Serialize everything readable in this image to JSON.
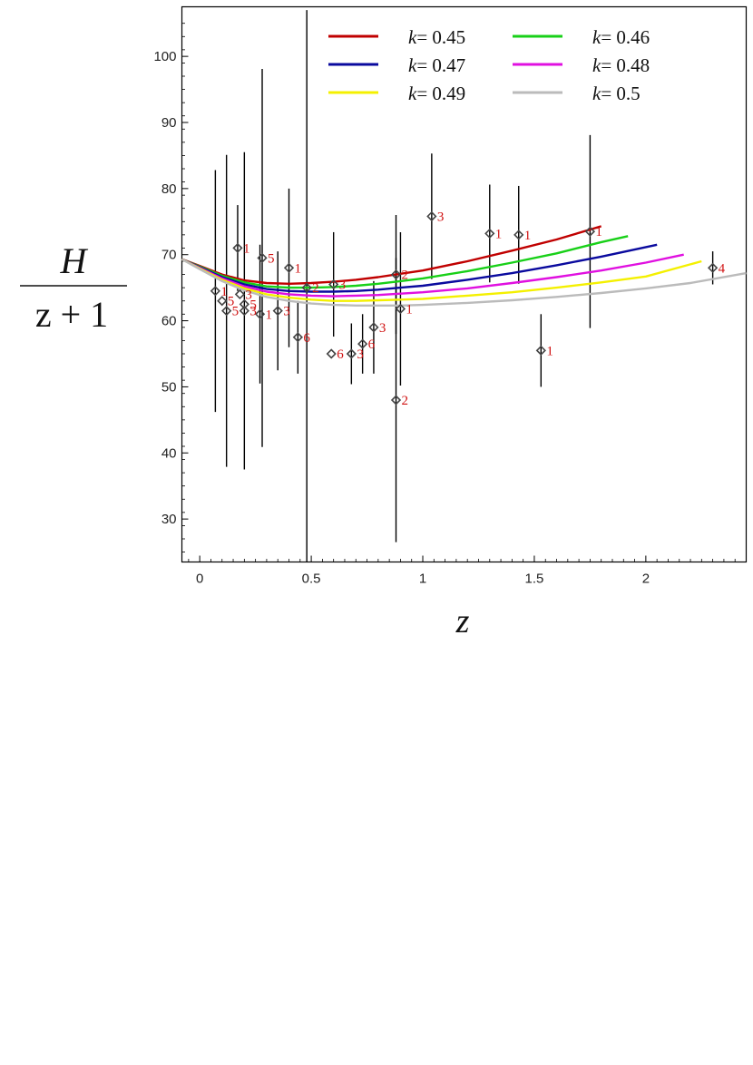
{
  "chart_data": {
    "type": "scatter",
    "xlabel": "z",
    "ylabel_numerator": "H",
    "ylabel_denominator": "z + 1",
    "xlim": [
      -0.08,
      2.45
    ],
    "ylim": [
      23.5,
      107.5
    ],
    "xticks": [
      "0",
      "0.5",
      "1",
      "1.5",
      "2"
    ],
    "xtick_values": [
      0,
      0.5,
      1,
      1.5,
      2
    ],
    "yticks": [
      "30",
      "40",
      "50",
      "60",
      "70",
      "80",
      "90",
      "100"
    ],
    "ytick_values": [
      30,
      40,
      50,
      60,
      70,
      80,
      90,
      100
    ],
    "legend": [
      {
        "var": "k",
        "value": "= 0.45",
        "color": "#c00000"
      },
      {
        "var": "k",
        "value": "= 0.46",
        "color": "#18d018"
      },
      {
        "var": "k",
        "value": "= 0.47",
        "color": "#0a0a9e"
      },
      {
        "var": "k",
        "value": "= 0.48",
        "color": "#e010e0"
      },
      {
        "var": "k",
        "value": "= 0.49",
        "color": "#f4f000"
      },
      {
        "var": "k",
        "value": "= 0.5",
        "color": "#bbbbbb"
      }
    ],
    "curves": [
      {
        "k": 0.45,
        "color": "#c00000",
        "x": [
          -0.08,
          0.0,
          0.1,
          0.2,
          0.3,
          0.4,
          0.5,
          0.6,
          0.7,
          0.8,
          0.9,
          1.0,
          1.2,
          1.4,
          1.6,
          1.8
        ],
        "y": [
          69.3,
          68.3,
          67.0,
          66.1,
          65.7,
          65.6,
          65.7,
          65.9,
          66.2,
          66.6,
          67.1,
          67.6,
          69.0,
          70.6,
          72.3,
          74.3
        ]
      },
      {
        "k": 0.46,
        "color": "#18d018",
        "x": [
          -0.08,
          0.0,
          0.1,
          0.2,
          0.3,
          0.4,
          0.5,
          0.6,
          0.7,
          0.8,
          0.9,
          1.0,
          1.2,
          1.4,
          1.6,
          1.8,
          1.92
        ],
        "y": [
          69.3,
          68.2,
          66.8,
          65.8,
          65.2,
          65.0,
          65.0,
          65.1,
          65.3,
          65.6,
          66.0,
          66.4,
          67.5,
          68.8,
          70.2,
          71.9,
          72.8
        ]
      },
      {
        "k": 0.47,
        "color": "#0a0a9e",
        "x": [
          -0.08,
          0.0,
          0.1,
          0.2,
          0.3,
          0.4,
          0.5,
          0.6,
          0.7,
          0.8,
          0.9,
          1.0,
          1.2,
          1.4,
          1.6,
          1.8,
          2.05
        ],
        "y": [
          69.3,
          68.1,
          66.6,
          65.5,
          64.8,
          64.5,
          64.4,
          64.4,
          64.5,
          64.7,
          65.0,
          65.3,
          66.2,
          67.2,
          68.4,
          69.7,
          71.5
        ]
      },
      {
        "k": 0.48,
        "color": "#e010e0",
        "x": [
          -0.08,
          0.0,
          0.1,
          0.2,
          0.3,
          0.4,
          0.5,
          0.6,
          0.7,
          0.8,
          0.9,
          1.0,
          1.2,
          1.4,
          1.6,
          1.8,
          2.0,
          2.17
        ],
        "y": [
          69.3,
          68.0,
          66.4,
          65.2,
          64.4,
          64.0,
          63.8,
          63.7,
          63.8,
          63.9,
          64.1,
          64.3,
          64.9,
          65.7,
          66.6,
          67.6,
          68.8,
          70.0
        ]
      },
      {
        "k": 0.49,
        "color": "#f4f000",
        "x": [
          -0.08,
          0.0,
          0.1,
          0.2,
          0.3,
          0.4,
          0.5,
          0.6,
          0.7,
          0.8,
          0.9,
          1.0,
          1.2,
          1.4,
          1.6,
          1.8,
          2.0,
          2.25
        ],
        "y": [
          69.3,
          67.9,
          66.2,
          64.9,
          64.0,
          63.5,
          63.2,
          63.0,
          63.0,
          63.1,
          63.2,
          63.3,
          63.8,
          64.3,
          65.0,
          65.8,
          66.7,
          69.0
        ]
      },
      {
        "k": 0.5,
        "color": "#bbbbbb",
        "x": [
          -0.08,
          0.0,
          0.1,
          0.2,
          0.3,
          0.4,
          0.5,
          0.6,
          0.7,
          0.8,
          0.9,
          1.0,
          1.2,
          1.4,
          1.6,
          1.8,
          2.0,
          2.2,
          2.45
        ],
        "y": [
          69.3,
          67.8,
          66.0,
          64.6,
          63.6,
          63.0,
          62.6,
          62.4,
          62.3,
          62.3,
          62.3,
          62.4,
          62.7,
          63.1,
          63.6,
          64.2,
          64.9,
          65.7,
          67.2
        ]
      }
    ],
    "points": [
      {
        "x": 0.07,
        "y": 64.5,
        "err": 18.3,
        "label": "1"
      },
      {
        "x": 0.1,
        "y": 63.0,
        "err": 0,
        "label": "5"
      },
      {
        "x": 0.12,
        "y": 61.5,
        "err": 23.6,
        "label": "5"
      },
      {
        "x": 0.17,
        "y": 71.0,
        "err": 6.5,
        "label": "1"
      },
      {
        "x": 0.18,
        "y": 64.0,
        "err": 0,
        "label": "3"
      },
      {
        "x": 0.2,
        "y": 61.5,
        "err": 24.0,
        "label": "3"
      },
      {
        "x": 0.2,
        "y": 62.5,
        "err": 0,
        "label": "5"
      },
      {
        "x": 0.27,
        "y": 61.0,
        "err": 10.5,
        "label": "1"
      },
      {
        "x": 0.28,
        "y": 69.5,
        "err": 28.6,
        "label": "5"
      },
      {
        "x": 0.35,
        "y": 61.5,
        "err": 9.0,
        "label": "3"
      },
      {
        "x": 0.4,
        "y": 68.0,
        "err": 12.0,
        "label": "1"
      },
      {
        "x": 0.44,
        "y": 57.5,
        "err": 5.5,
        "label": "6"
      },
      {
        "x": 0.48,
        "y": 65.0,
        "err": 42.0,
        "label": "2"
      },
      {
        "x": 0.59,
        "y": 55.0,
        "err": 0,
        "label": "6"
      },
      {
        "x": 0.6,
        "y": 65.5,
        "err": 7.9,
        "label": "3"
      },
      {
        "x": 0.68,
        "y": 55.0,
        "err": 4.6,
        "label": "3"
      },
      {
        "x": 0.73,
        "y": 56.5,
        "err": 4.5,
        "label": "6"
      },
      {
        "x": 0.78,
        "y": 59.0,
        "err": 7.0,
        "label": "3"
      },
      {
        "x": 0.88,
        "y": 48.0,
        "err": 21.5,
        "label": "2"
      },
      {
        "x": 0.88,
        "y": 67.0,
        "err": 9.0,
        "label": "2"
      },
      {
        "x": 0.9,
        "y": 61.8,
        "err": 11.6,
        "label": "1"
      },
      {
        "x": 1.04,
        "y": 75.8,
        "err": 9.5,
        "label": "3"
      },
      {
        "x": 1.3,
        "y": 73.2,
        "err": 7.4,
        "label": "1"
      },
      {
        "x": 1.43,
        "y": 73.0,
        "err": 7.4,
        "label": "1"
      },
      {
        "x": 1.53,
        "y": 55.5,
        "err": 5.5,
        "label": "1"
      },
      {
        "x": 1.75,
        "y": 73.5,
        "err": 14.6,
        "label": "1"
      },
      {
        "x": 2.3,
        "y": 68.0,
        "err": 2.5,
        "label": "4"
      }
    ]
  }
}
